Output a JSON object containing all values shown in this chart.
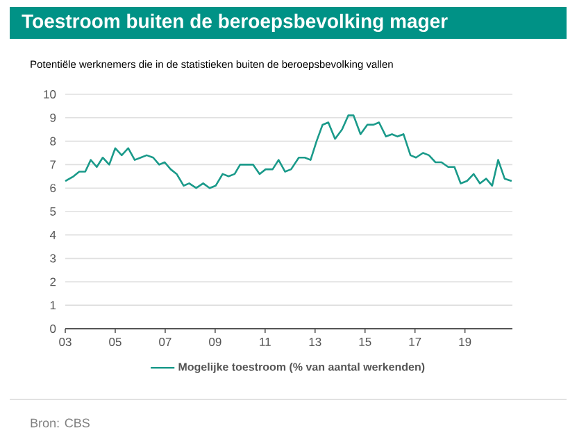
{
  "chart_data": {
    "type": "line",
    "title": "Toestroom buiten de beroepsbevolking mager",
    "subtitle": "Potentiële werknemers die in de statistieken buiten de beroepsbevolking vallen",
    "annotations": [
      "Bron: CBS"
    ],
    "x": [
      2003.0,
      2003.33,
      2003.56,
      2003.8,
      2004.02,
      2004.26,
      2004.5,
      2004.76,
      2005.0,
      2005.26,
      2005.52,
      2005.78,
      2006.02,
      2006.26,
      2006.52,
      2006.76,
      2006.98,
      2007.22,
      2007.46,
      2007.74,
      2007.96,
      2008.24,
      2008.52,
      2008.78,
      2009.02,
      2009.3,
      2009.54,
      2009.78,
      2010.0,
      2010.28,
      2010.52,
      2010.78,
      2011.02,
      2011.3,
      2011.54,
      2011.8,
      2012.04,
      2012.35,
      2012.59,
      2012.82,
      2013.06,
      2013.3,
      2013.53,
      2013.8,
      2014.08,
      2014.33,
      2014.54,
      2014.82,
      2015.09,
      2015.34,
      2015.56,
      2015.84,
      2016.08,
      2016.3,
      2016.54,
      2016.82,
      2017.04,
      2017.32,
      2017.56,
      2017.82,
      2018.06,
      2018.33,
      2018.58,
      2018.83,
      2019.08,
      2019.35,
      2019.6,
      2019.85,
      2020.09,
      2020.33,
      2020.59,
      2020.87
    ],
    "series": [
      {
        "name": "Mogelijke toestroom (% van aantal werkenden)",
        "color": "#1a9a8a",
        "values": [
          6.3,
          6.5,
          6.7,
          6.7,
          7.2,
          6.9,
          7.3,
          7.0,
          7.7,
          7.4,
          7.7,
          7.2,
          7.3,
          7.4,
          7.3,
          7.0,
          7.1,
          6.8,
          6.6,
          6.1,
          6.2,
          6.0,
          6.2,
          6.0,
          6.1,
          6.6,
          6.5,
          6.6,
          7.0,
          7.0,
          7.0,
          6.6,
          6.8,
          6.8,
          7.2,
          6.7,
          6.8,
          7.3,
          7.3,
          7.2,
          8.0,
          8.7,
          8.8,
          8.1,
          8.5,
          9.1,
          9.1,
          8.3,
          8.7,
          8.7,
          8.8,
          8.2,
          8.3,
          8.2,
          8.3,
          7.4,
          7.3,
          7.5,
          7.4,
          7.1,
          7.1,
          6.9,
          6.9,
          6.2,
          6.3,
          6.6,
          6.2,
          6.4,
          6.1,
          7.2,
          6.4,
          6.3
        ]
      }
    ],
    "xlim": [
      2003,
      2020.9
    ],
    "xticks": [
      {
        "value": 2003,
        "label": "03"
      },
      {
        "value": 2005,
        "label": "05"
      },
      {
        "value": 2007,
        "label": "07"
      },
      {
        "value": 2009,
        "label": "09"
      },
      {
        "value": 2011,
        "label": "11"
      },
      {
        "value": 2013,
        "label": "13"
      },
      {
        "value": 2015,
        "label": "15"
      },
      {
        "value": 2017,
        "label": "17"
      },
      {
        "value": 2019,
        "label": "19"
      }
    ],
    "ylim": [
      0,
      10
    ],
    "yticks": [
      0,
      1,
      2,
      3,
      4,
      5,
      6,
      7,
      8,
      9,
      10
    ],
    "grid": "y",
    "legend": "bottom",
    "line_style": "solid",
    "marker": "none"
  }
}
